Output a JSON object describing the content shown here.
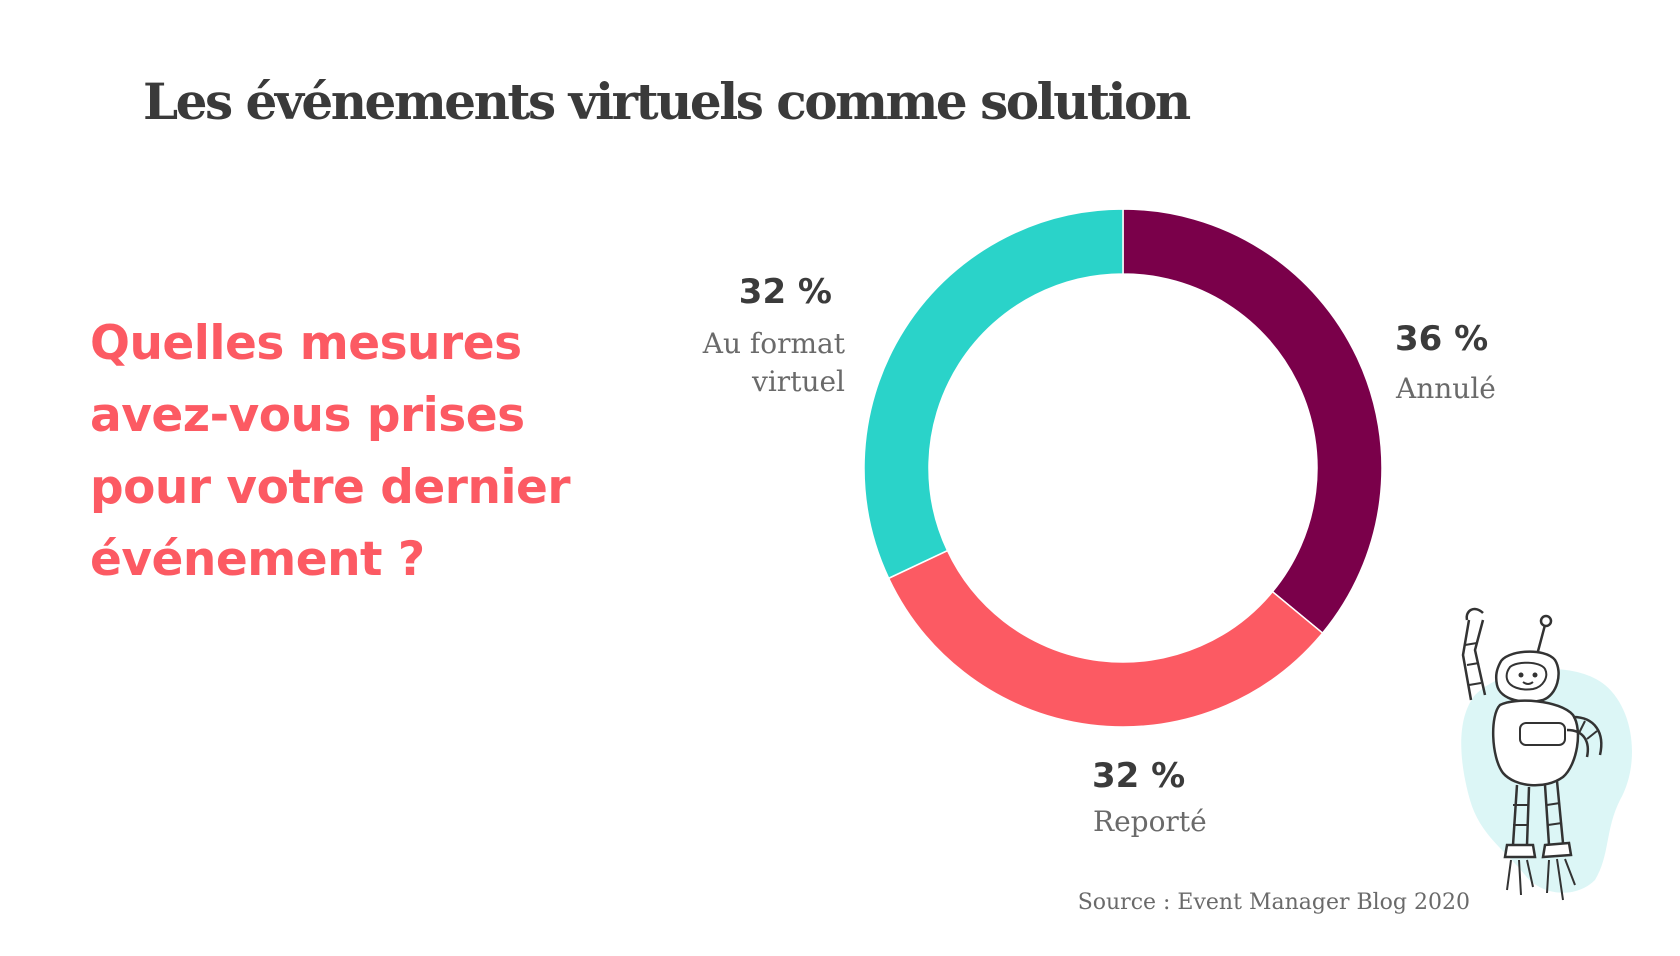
{
  "title": "Les événements virtuels comme solution",
  "question": "Quelles mesures avez-vous prises pour votre dernier événement ?",
  "source": "Source : Event Manager Blog 2020",
  "chart_data": {
    "type": "pie",
    "donut": true,
    "slices": [
      {
        "label": "Annulé",
        "value": 36,
        "value_text": "36 %",
        "color": "#7a004a"
      },
      {
        "label": "Reporté",
        "value": 32,
        "value_text": "32 %",
        "color": "#fc5a63"
      },
      {
        "label": "Au format virtuel",
        "label_lines": [
          "Au format",
          "virtuel"
        ],
        "value": 32,
        "value_text": "32 %",
        "color": "#2ad3c9"
      }
    ]
  },
  "icons": {
    "robot": "robot-astronaut-illustration-icon"
  }
}
